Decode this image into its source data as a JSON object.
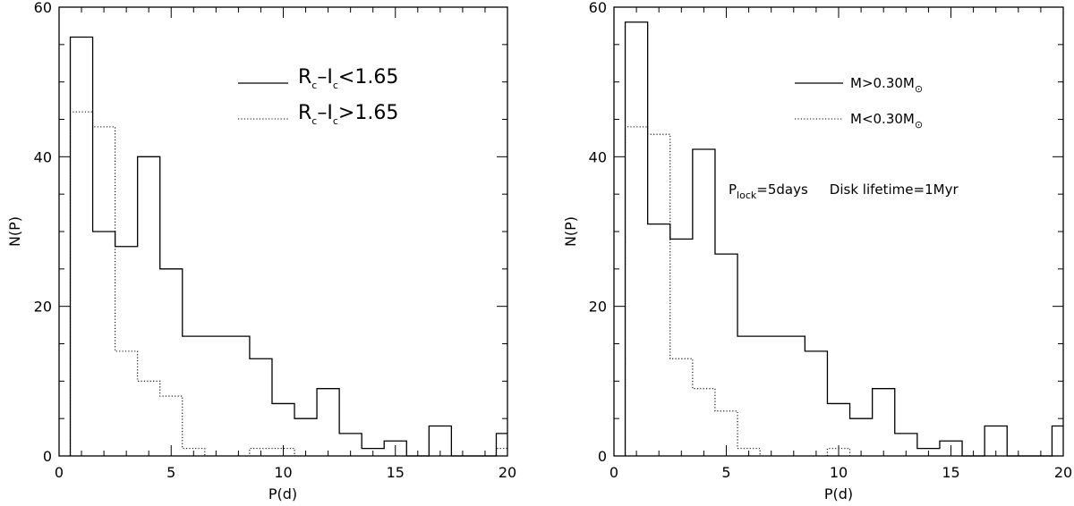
{
  "chart_data": [
    {
      "type": "histogram",
      "xlabel": "P(d)",
      "ylabel": "N(P)",
      "xlim": [
        0,
        20
      ],
      "ylim": [
        0,
        60
      ],
      "xticks": [
        0,
        5,
        10,
        15,
        20
      ],
      "yticks": [
        0,
        20,
        40,
        60
      ],
      "bin_edges": [
        0.5,
        1.5,
        2.5,
        3.5,
        4.5,
        5.5,
        6.5,
        7.5,
        8.5,
        9.5,
        10.5,
        11.5,
        12.5,
        13.5,
        14.5,
        15.5,
        16.5,
        17.5,
        18.5,
        19.5,
        20.5
      ],
      "series": [
        {
          "legend": {
            "parts": [
              "R",
              "c",
              "–I",
              "c",
              "<1.65"
            ]
          },
          "style": "solid",
          "values": [
            56,
            30,
            28,
            40,
            25,
            16,
            16,
            16,
            13,
            7,
            5,
            9,
            3,
            1,
            2,
            0,
            4,
            0,
            0,
            3
          ]
        },
        {
          "legend": {
            "parts": [
              "R",
              "c",
              "–I",
              "c",
              ">1.65"
            ]
          },
          "style": "dotted",
          "values": [
            46,
            44,
            14,
            10,
            8,
            1,
            0,
            0,
            1,
            1,
            0,
            0,
            0,
            0,
            0,
            0,
            0,
            0,
            0,
            1
          ]
        }
      ],
      "legend_position": "top-right"
    },
    {
      "type": "histogram",
      "xlabel": "P(d)",
      "ylabel": "N(P)",
      "xlim": [
        0,
        20
      ],
      "ylim": [
        0,
        60
      ],
      "xticks": [
        0,
        5,
        10,
        15,
        20
      ],
      "yticks": [
        0,
        20,
        40,
        60
      ],
      "bin_edges": [
        0.5,
        1.5,
        2.5,
        3.5,
        4.5,
        5.5,
        6.5,
        7.5,
        8.5,
        9.5,
        10.5,
        11.5,
        12.5,
        13.5,
        14.5,
        15.5,
        16.5,
        17.5,
        18.5,
        19.5,
        20.5
      ],
      "series": [
        {
          "legend": {
            "parts": [
              "M>0.30M",
              "⊙"
            ]
          },
          "style": "solid",
          "values": [
            58,
            31,
            29,
            41,
            27,
            16,
            16,
            16,
            14,
            7,
            5,
            9,
            3,
            1,
            2,
            0,
            4,
            0,
            0,
            4
          ]
        },
        {
          "legend": {
            "parts": [
              "M<0.30M",
              "⊙"
            ]
          },
          "style": "dotted",
          "values": [
            44,
            43,
            13,
            9,
            6,
            1,
            0,
            0,
            0,
            1,
            0,
            0,
            0,
            0,
            0,
            0,
            0,
            0,
            0,
            0
          ]
        }
      ],
      "annotation": {
        "parts": [
          "P",
          "lock",
          "=5days",
          "Disk lifetime=1Myr"
        ]
      },
      "legend_position": "top-right"
    }
  ]
}
